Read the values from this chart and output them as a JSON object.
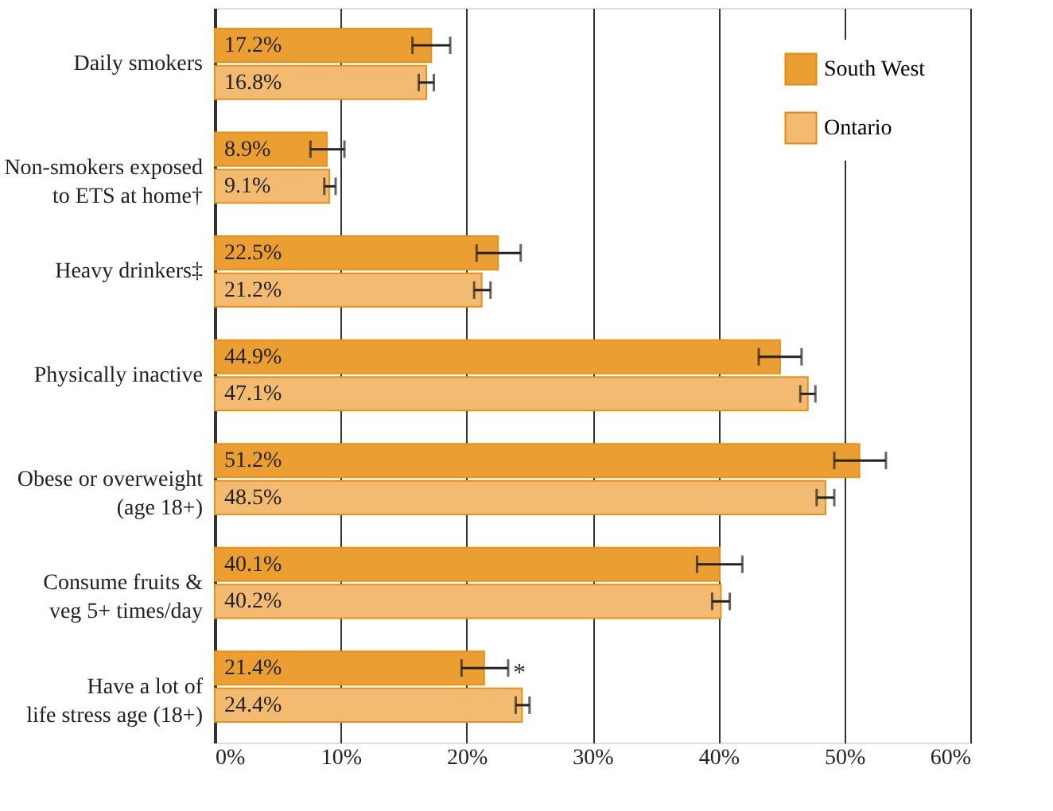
{
  "chart_data": {
    "type": "bar",
    "orientation": "horizontal",
    "categories": [
      "Daily smokers",
      "Non-smokers exposed\nto ETS at home†",
      "Heavy drinkers‡",
      "Physically inactive",
      "Obese or overweight\n(age 18+)",
      "Consume fruits &\nveg 5+ times/day",
      "Have a lot of\nlife stress age (18+)"
    ],
    "series": [
      {
        "name": "South West",
        "color": "#eb9e32",
        "values": [
          17.2,
          8.9,
          22.5,
          44.9,
          51.2,
          40.1,
          21.4
        ],
        "value_labels": [
          "17.2%",
          "8.9%",
          "22.5%",
          "44.9%",
          "51.2%",
          "40.1%",
          "21.4%"
        ],
        "errors": [
          [
            15.7,
            18.7
          ],
          [
            7.6,
            10.3
          ],
          [
            20.8,
            24.3
          ],
          [
            43.2,
            46.6
          ],
          [
            49.2,
            53.3
          ],
          [
            38.3,
            41.9
          ],
          [
            19.6,
            23.3
          ]
        ]
      },
      {
        "name": "Ontario",
        "color": "#f3bb72",
        "values": [
          16.8,
          9.1,
          21.2,
          47.1,
          48.5,
          40.2,
          24.4
        ],
        "value_labels": [
          "16.8%",
          "9.1%",
          "21.2%",
          "47.1%",
          "48.5%",
          "40.2%",
          "24.4%"
        ],
        "errors": [
          [
            16.2,
            17.4
          ],
          [
            8.7,
            9.6
          ],
          [
            20.6,
            21.9
          ],
          [
            46.5,
            47.7
          ],
          [
            47.8,
            49.2
          ],
          [
            39.5,
            40.9
          ],
          [
            23.9,
            25.0
          ]
        ]
      }
    ],
    "xlim": [
      0,
      60
    ],
    "xticks": [
      {
        "value": 0,
        "label": "0%"
      },
      {
        "value": 10,
        "label": "10%"
      },
      {
        "value": 20,
        "label": "20%"
      },
      {
        "value": 30,
        "label": "30%"
      },
      {
        "value": 40,
        "label": "40%"
      },
      {
        "value": 50,
        "label": "50%"
      },
      {
        "value": 60,
        "label": "60%"
      }
    ],
    "grid": "x",
    "legend": "top right",
    "annotations": [
      {
        "text": "*",
        "x": 23.3,
        "y": "Have a lot of\nlife stress age (18+)"
      }
    ]
  }
}
